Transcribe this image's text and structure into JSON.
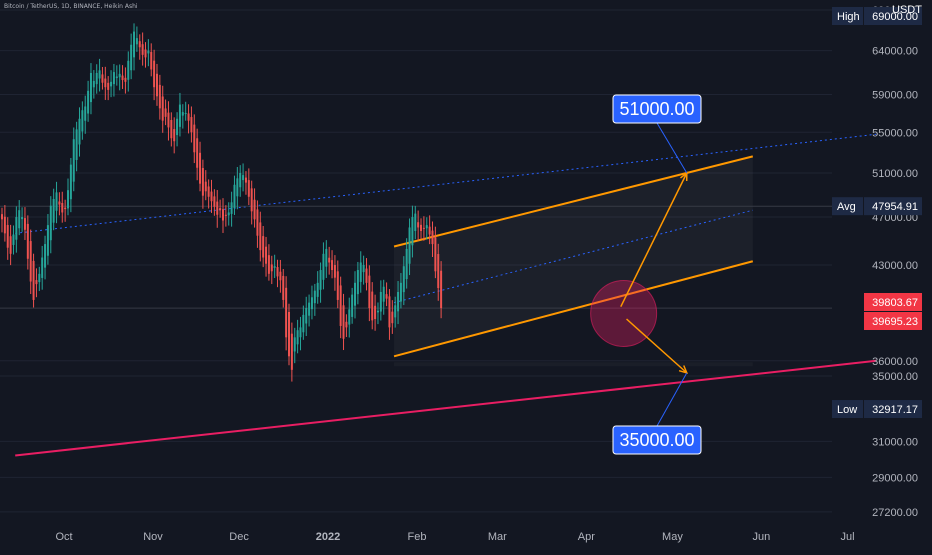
{
  "header": {
    "symbol": "Bitcoin / TetherUS",
    "interval": "1D",
    "exchange": "BINANCE",
    "chart_style": "Heikin Ashi",
    "currency": "USDT"
  },
  "chart_data": {
    "type": "candlestick",
    "style": "heikin-ashi",
    "x_ticks": [
      "Oct",
      "Nov",
      "Dec",
      "2022",
      "Feb",
      "Mar",
      "Apr",
      "May",
      "Jun",
      "Jul"
    ],
    "y_ticks": [
      27200,
      29000,
      31000,
      35000,
      36000,
      43000,
      47000,
      51000,
      55000,
      59000,
      64000,
      69000
    ],
    "y_scale": "log",
    "ylim": [
      26300,
      70300
    ],
    "price_labels": {
      "high": {
        "label": "High",
        "value": "69000.00"
      },
      "avg": {
        "label": "Avg",
        "value": "47954.91"
      },
      "low": {
        "label": "Low",
        "value": "32917.17"
      },
      "current_a": "39803.67",
      "current_b": "39695.23"
    },
    "targets": {
      "up": "51000.00",
      "down": "35000.00"
    },
    "candles_close": [
      46800,
      45600,
      44400,
      43900,
      45500,
      47000,
      47600,
      47000,
      45900,
      43500,
      41700,
      40300,
      41500,
      42300,
      43600,
      44700,
      46300,
      48000,
      48600,
      49200,
      48100,
      47400,
      47700,
      49400,
      51800,
      54300,
      55300,
      56400,
      57300,
      57700,
      59400,
      61400,
      60500,
      61400,
      61700,
      60300,
      59800,
      59500,
      60400,
      61500,
      61000,
      61300,
      60600,
      60400,
      62800,
      64700,
      66300,
      65500,
      64400,
      63500,
      63200,
      64000,
      61800,
      59800,
      58800,
      57500,
      56200,
      56600,
      55500,
      54400,
      54100,
      56400,
      57900,
      57100,
      57000,
      56200,
      55000,
      53000,
      51500,
      50000,
      48900,
      49300,
      48800,
      48400,
      47900,
      47200,
      47600,
      46700,
      47100,
      47400,
      48300,
      49900,
      50500,
      51000,
      50800,
      50100,
      48800,
      47500,
      46800,
      45400,
      44200,
      43600,
      43100,
      42300,
      42500,
      42900,
      42100,
      41800,
      40300,
      37600,
      36300,
      35400,
      37600,
      38100,
      38300,
      39200,
      39700,
      40100,
      40500,
      41000,
      41600,
      42600,
      43900,
      44300,
      43200,
      42600,
      42000,
      40300,
      38400,
      37500,
      38300,
      39600,
      40700,
      41600,
      42600,
      43200,
      43000,
      41600,
      39700,
      38800,
      38900,
      39500,
      40900,
      41300,
      40400,
      38300,
      38600,
      39900,
      40900,
      41600,
      42900,
      44300,
      46100,
      47000,
      47300,
      46100,
      45800,
      46000,
      46300,
      45500,
      44700,
      42500,
      41200,
      39700
    ],
    "channel": {
      "upper": [
        {
          "date": "2022-01-24",
          "price": 44500
        },
        {
          "date": "2022-05-29",
          "price": 52600
        }
      ],
      "lower": [
        {
          "date": "2022-01-24",
          "price": 36300
        },
        {
          "date": "2022-05-29",
          "price": 43300
        }
      ]
    },
    "support_line": [
      {
        "date": "2021-09-14",
        "price": 30200
      },
      {
        "date": "2022-07-11",
        "price": 36000
      }
    ],
    "regression_lines": [
      [
        {
          "date": "2021-09-14",
          "price": 45600
        },
        {
          "date": "2022-07-11",
          "price": 54800
        }
      ],
      [
        {
          "date": "2022-01-24",
          "price": 40100
        },
        {
          "date": "2022-05-29",
          "price": 47600
        }
      ]
    ],
    "projections": [
      {
        "from": {
          "date": "2022-04-13",
          "price": 39800
        },
        "to": {
          "date": "2022-05-06",
          "price": 51000
        }
      },
      {
        "from": {
          "date": "2022-04-15",
          "price": 38900
        },
        "to": {
          "date": "2022-05-06",
          "price": 35200
        }
      }
    ],
    "highlight_circle": {
      "date": "2022-04-14",
      "price": 39300
    }
  },
  "colors": {
    "background": "#131722",
    "up": "#26a69a",
    "down": "#ef5350",
    "channel": "#ff9800",
    "support": "#e91e63",
    "regression": "#2962ff",
    "label_blue": "#2962ff",
    "label_red": "#f23645",
    "label_dark": "#1e2a45"
  }
}
